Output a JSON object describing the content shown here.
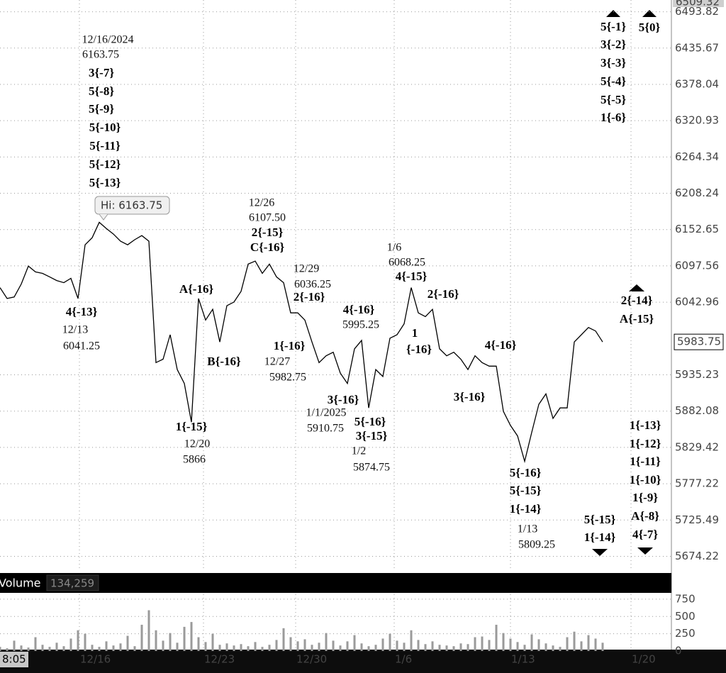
{
  "chart_data": {
    "type": "line",
    "color": "#000000",
    "log_scale": true,
    "grid": true,
    "values": [
      6064.75,
      6048.5,
      6050.75,
      6070.25,
      6097.25,
      6088.5,
      6086.25,
      6081,
      6075.5,
      6072.25,
      6078.75,
      6048.5,
      6129.5,
      6140.25,
      6163.75,
      6154.25,
      6145.75,
      6135,
      6129.5,
      6137.25,
      6143.5,
      6135,
      5953.25,
      5958.25,
      5994.5,
      5943,
      5922.5,
      5866,
      6048.5,
      6016.25,
      6032.25,
      5983.75,
      6037.75,
      6043.25,
      6059.25,
      6100.25,
      6104.75,
      6086.25,
      6100.25,
      6081,
      6072.25,
      6027,
      6027,
      6016.25,
      5983.75,
      5953.25,
      5963.25,
      5968.5,
      5937.75,
      5922.5,
      5973.5,
      5986,
      5886.75,
      5943,
      5932.75,
      5989.25,
      5994.5,
      6010.75,
      6064.75,
      6027,
      6021.5,
      6032.25,
      5973.5,
      5963.25,
      5968.5,
      5958.25,
      5943,
      5963.25,
      5953.25,
      5948,
      5948,
      5881.75,
      5861.25,
      5846,
      5809.25,
      5851.25,
      5892,
      5907.25,
      5871.5,
      5886.75,
      5886.75,
      5983.75,
      5994.5,
      6005.25,
      6000,
      5983.75
    ],
    "ylim": [
      5655.8,
      6509.32
    ],
    "yticks": [
      6493.82,
      6435.67,
      6378.04,
      6320.93,
      6264.34,
      6208.24,
      6152.65,
      6097.56,
      6042.96,
      5935.23,
      5882.08,
      5829.42,
      5777.22,
      5725.49,
      5674.22
    ],
    "xlim": [
      0,
      94.7
    ],
    "xticks": [
      {
        "value": 11.2,
        "label": "12/16"
      },
      {
        "value": 28.7,
        "label": "12/23"
      },
      {
        "value": 41.7,
        "label": "12/30"
      },
      {
        "value": 55.6,
        "label": "1/6"
      },
      {
        "value": 72,
        "label": "1/13"
      },
      {
        "value": 89,
        "label": "1/20"
      }
    ],
    "cursor_time_label": "8:05",
    "last_price": 5983.75,
    "high_label": "Hi: 6163.75",
    "annotations": [
      "12/16/2024",
      "6163.75",
      "3{-7}",
      "5{-8}",
      "5{-9}",
      "5{-10}",
      "5{-11}",
      "5{-12}",
      "5{-13}",
      "4{-13}",
      "12/13",
      "6041.25",
      "1{-15}",
      "12/20",
      "5866",
      "A{-16}",
      "B{-16}",
      "12/26",
      "6107.50",
      "2{-15}",
      "C{-16}",
      "12/29",
      "6036.25",
      "2{-16}",
      "1{-16}",
      "12/27",
      "5982.75",
      "4{-16}",
      "5995.25",
      "3{-16}",
      "1/1/2025",
      "5910.75",
      "5{-16}",
      "3{-15}",
      "1/2",
      "5874.75",
      "1/6",
      "6068.25",
      "4{-15}",
      "2{-16}",
      "1",
      "{-16}",
      "4{-16}",
      "3{-16}",
      "5{-16}",
      "5{-15}",
      "1{-14}",
      "1/13",
      "5809.25",
      "5{-1}",
      "3{-2}",
      "3{-3}",
      "5{-4}",
      "5{-5}",
      "1{-6}",
      "5{0}",
      "2{-14}",
      "A{-15}",
      "1{-13}",
      "1{-12}",
      "1{-11}",
      "1{-10}",
      "1{-9}",
      "A{-8}",
      "4{-7}",
      "5{-15}",
      "1{-14}"
    ],
    "volume": {
      "title": "Volume",
      "last_label": "134,259",
      "color": "#9a9a9a",
      "values": [
        60,
        40,
        150,
        80,
        50,
        200,
        90,
        60,
        120,
        70,
        180,
        300,
        250,
        90,
        60,
        140,
        80,
        110,
        220,
        70,
        380,
        590,
        300,
        150,
        260,
        120,
        350,
        420,
        200,
        130,
        250,
        90,
        110,
        80,
        100,
        70,
        130,
        60,
        90,
        160,
        330,
        200,
        140,
        170,
        90,
        120,
        260,
        150,
        80,
        140,
        230,
        110,
        70,
        90,
        180,
        250,
        150,
        120,
        300,
        160,
        100,
        140,
        90,
        80,
        70,
        110,
        100,
        200,
        210,
        160,
        380,
        260,
        180,
        130,
        90,
        240,
        170,
        110,
        80,
        60,
        200,
        280,
        140,
        230,
        180,
        120
      ],
      "ylim": [
        0,
        821
      ],
      "yticks": [
        750,
        500,
        250,
        0
      ]
    }
  }
}
